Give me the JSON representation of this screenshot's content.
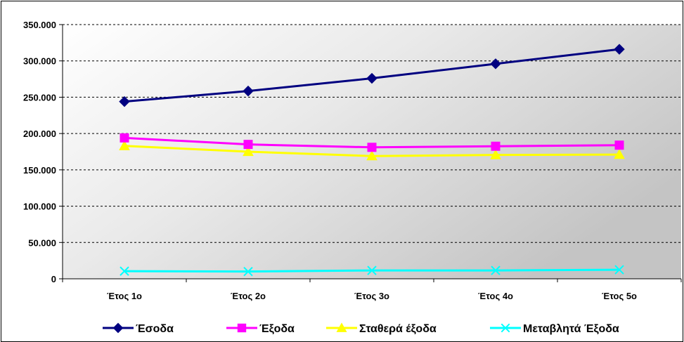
{
  "chart_data": {
    "type": "line",
    "categories": [
      "Έτος 1ο",
      "Έτος 2ο",
      "Έτος 3ο",
      "Έτος 4ο",
      "Έτος 5ο"
    ],
    "y_ticks": [
      "0",
      "50.000",
      "100.000",
      "150.000",
      "200.000",
      "250.000",
      "300.000",
      "350.000"
    ],
    "ylim": [
      0,
      350000
    ],
    "grid": "horizontal dashed",
    "legend_position": "bottom",
    "series": [
      {
        "name": "Έσοδα",
        "color": "#000080",
        "marker": "diamond",
        "values": [
          244000,
          258500,
          276000,
          296000,
          316000
        ]
      },
      {
        "name": "Έξοδα",
        "color": "#FF00FF",
        "marker": "square",
        "values": [
          194000,
          185000,
          181000,
          182500,
          184000
        ]
      },
      {
        "name": "Σταθερά έξοδα",
        "color": "#FFFF00",
        "marker": "triangle",
        "values": [
          183000,
          175000,
          169000,
          170500,
          171000
        ]
      },
      {
        "name": "Μεταβλητά Έξοδα",
        "color": "#00FFFF",
        "marker": "x",
        "values": [
          10500,
          10000,
          11500,
          11500,
          12500
        ]
      }
    ]
  }
}
